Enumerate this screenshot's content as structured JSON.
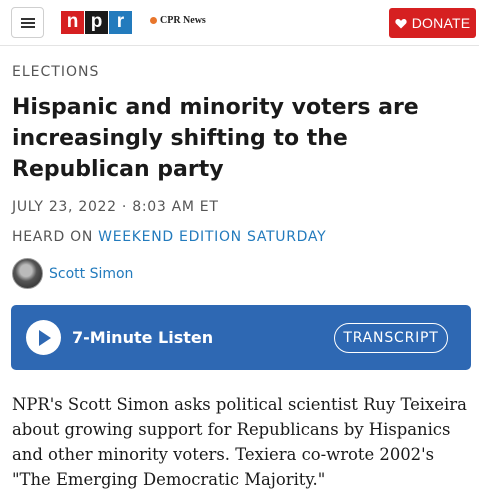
{
  "header": {
    "menu_icon": "hamburger-menu-icon",
    "logo_letters": [
      "n",
      "p",
      "r"
    ],
    "station_name": "CPR News",
    "donate_label": "DONATE",
    "donate_icon": "heart-icon",
    "colors": {
      "npr_red": "#d62021",
      "npr_black": "#1a1a1a",
      "npr_blue": "#237bbd",
      "station_orange": "#e8762c"
    }
  },
  "article": {
    "section": "ELECTIONS",
    "headline": "Hispanic and minority voters are increasingly shifting to the Republican party",
    "dateline": "JULY 23, 2022 · 8:03 AM ET",
    "heard_on_prefix": "HEARD ON ",
    "heard_on_program": "WEEKEND EDITION SATURDAY",
    "author": "Scott Simon",
    "body": "NPR's Scott Simon asks political scientist Ruy Teixeira about growing support for Republicans by Hispanics and other minority voters. Texiera co-wrote 2002's \"The Emerging Democratic Majority.\""
  },
  "player": {
    "play_icon": "play-icon",
    "listen_label": "7-Minute Listen",
    "transcript_label": "TRANSCRIPT",
    "color": "#2e68b3"
  }
}
